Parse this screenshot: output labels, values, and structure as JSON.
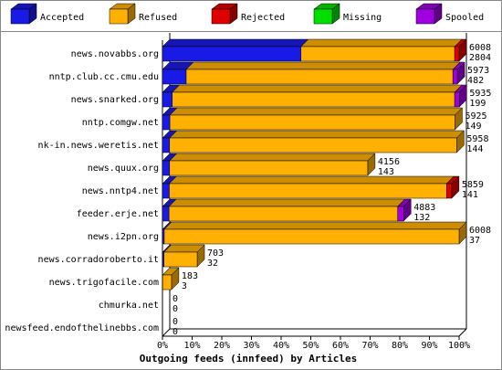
{
  "chart_data": {
    "type": "stacked-bar-3d",
    "orientation": "horizontal",
    "title": "Outgoing feeds (innfeed) by Articles",
    "legend": "top",
    "categories": [
      "news.novabbs.org",
      "nntp.club.cc.cmu.edu",
      "news.snarked.org",
      "nntp.comgw.net",
      "nk-in.news.weretis.net",
      "news.quux.org",
      "news.nntp4.net",
      "feeder.erje.net",
      "news.i2pn.org",
      "news.corradoroberto.it",
      "news.trigofacile.com",
      "chmurka.net",
      "newsfeed.endofthelinebbs.com"
    ],
    "series": [
      {
        "name": "Accepted",
        "color": "#1a1ae6",
        "values": [
          46.7,
          8.0,
          3.3,
          2.5,
          2.4,
          2.4,
          2.3,
          2.2,
          0.6,
          0.5,
          0.05,
          0,
          0
        ]
      },
      {
        "name": "Refused",
        "color": "#ffb000",
        "values": [
          51.8,
          89.9,
          95.2,
          96.1,
          96.8,
          66.8,
          93.5,
          77.1,
          99.4,
          11.2,
          3.0,
          0,
          0
        ]
      },
      {
        "name": "Rejected",
        "color": "#e00000",
        "values": [
          1.5,
          0,
          0,
          0,
          0,
          0,
          1.7,
          0,
          0,
          0,
          0,
          0,
          0
        ]
      },
      {
        "name": "Missing",
        "color": "#00e000",
        "values": [
          0,
          0,
          0,
          0,
          0,
          0,
          0,
          0,
          0,
          0,
          0,
          0,
          0
        ]
      },
      {
        "name": "Spooled",
        "color": "#a000e0",
        "values": [
          0,
          1.5,
          1.6,
          0,
          0,
          0,
          0,
          2.0,
          0,
          0,
          0,
          0,
          0
        ]
      }
    ],
    "offered": [
      6008,
      5973,
      5935,
      5925,
      5958,
      4156,
      5859,
      4883,
      6008,
      703,
      183,
      0,
      0
    ],
    "accepted": [
      2804,
      482,
      199,
      149,
      144,
      143,
      141,
      132,
      37,
      32,
      3,
      0,
      0
    ],
    "xlim": [
      0,
      100
    ],
    "xticks": [
      {
        "value": 0,
        "label": "0%"
      },
      {
        "value": 10,
        "label": "10%"
      },
      {
        "value": 20,
        "label": "20%"
      },
      {
        "value": 30,
        "label": "30%"
      },
      {
        "value": 40,
        "label": "40%"
      },
      {
        "value": 50,
        "label": "50%"
      },
      {
        "value": 60,
        "label": "60%"
      },
      {
        "value": 70,
        "label": "70%"
      },
      {
        "value": 80,
        "label": "80%"
      },
      {
        "value": 90,
        "label": "90%"
      },
      {
        "value": 100,
        "label": "100%"
      }
    ]
  }
}
